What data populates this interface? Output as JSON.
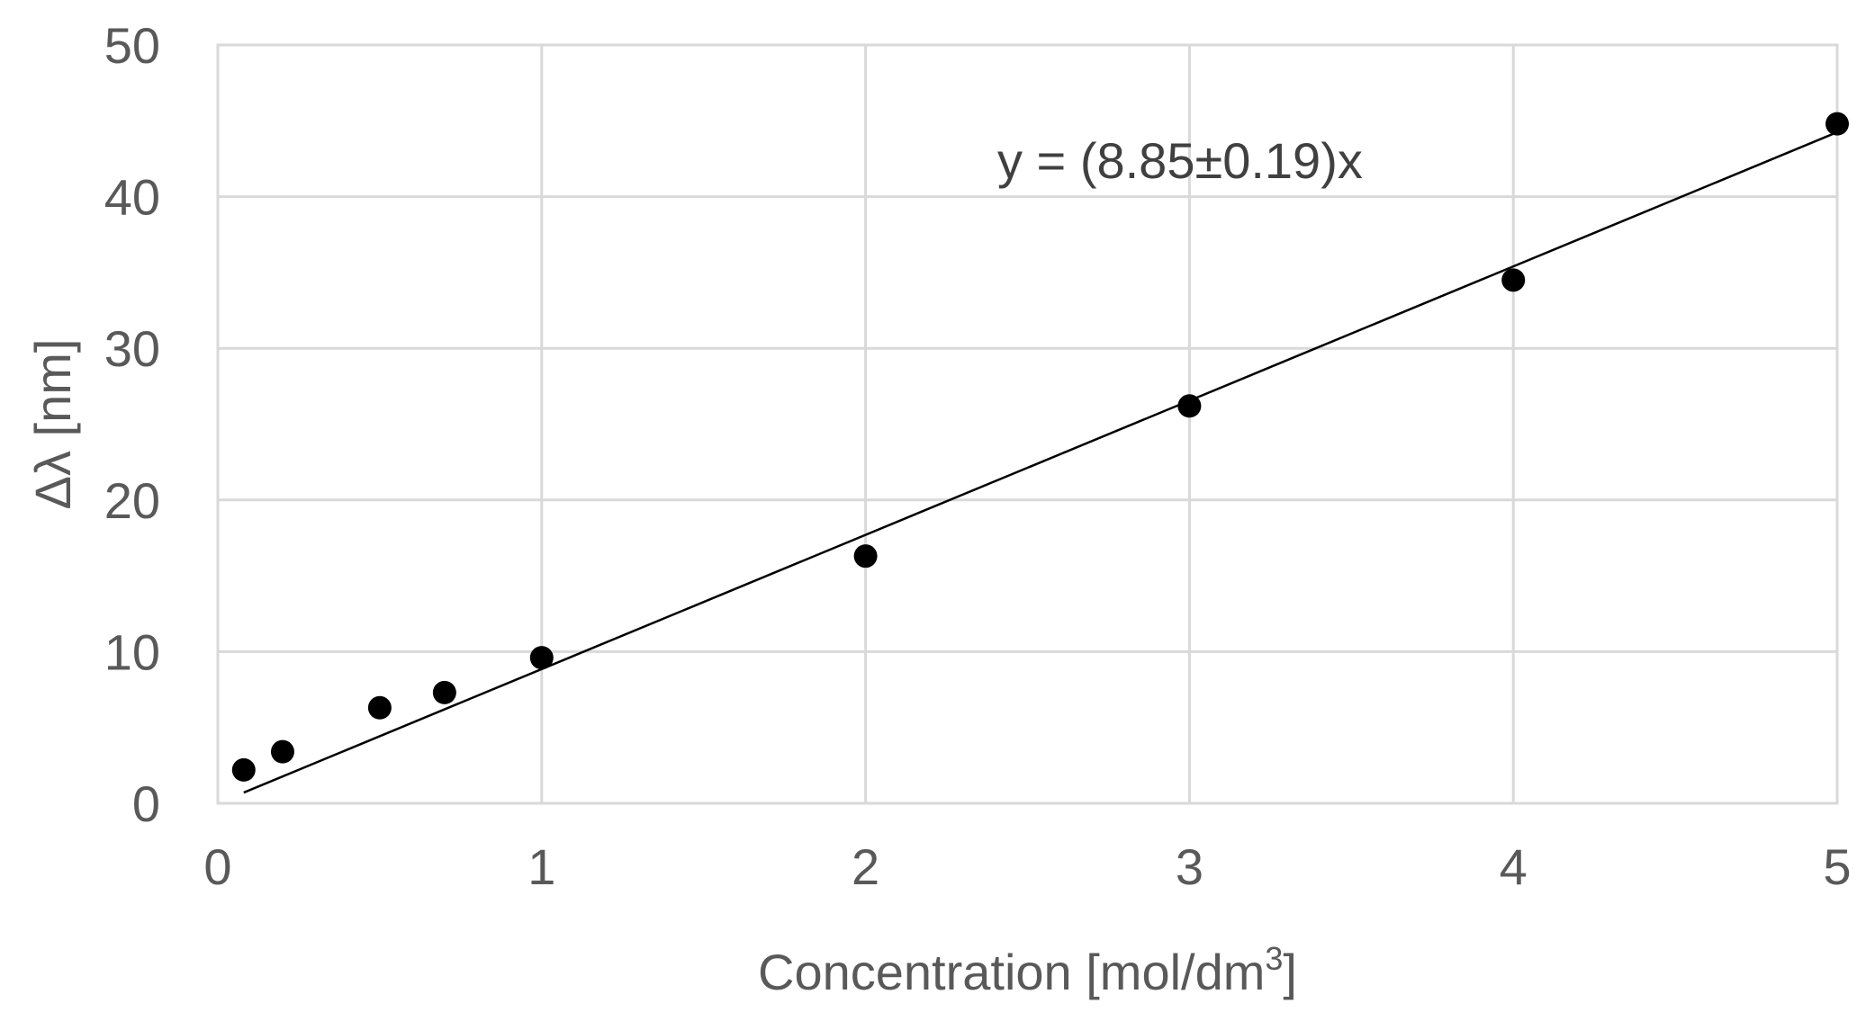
{
  "chart_data": {
    "type": "scatter",
    "title": "",
    "xlabel": "Concentration [mol/dm",
    "xlabel_superscript": "3",
    "xlabel_suffix": "]",
    "ylabel": "Δλ [nm]",
    "xlim": [
      0,
      5
    ],
    "ylim": [
      0,
      50
    ],
    "x_ticks": [
      "0",
      "1",
      "2",
      "3",
      "4",
      "5"
    ],
    "y_ticks": [
      "0",
      "10",
      "20",
      "30",
      "40",
      "50"
    ],
    "grid": true,
    "legend": "none",
    "series": [
      {
        "x": [
          0.08,
          0.2,
          0.5,
          0.7,
          1,
          2,
          3,
          4,
          5
        ],
        "y": [
          2.2,
          3.4,
          6.3,
          7.3,
          9.6,
          16.3,
          26.2,
          34.5,
          44.8
        ],
        "marker": "circle",
        "color": "#000000"
      }
    ],
    "fit": {
      "slope": 8.85,
      "x_range": [
        0.08,
        5
      ],
      "label": "y = (8.85±0.19)x",
      "color": "#000000"
    }
  }
}
